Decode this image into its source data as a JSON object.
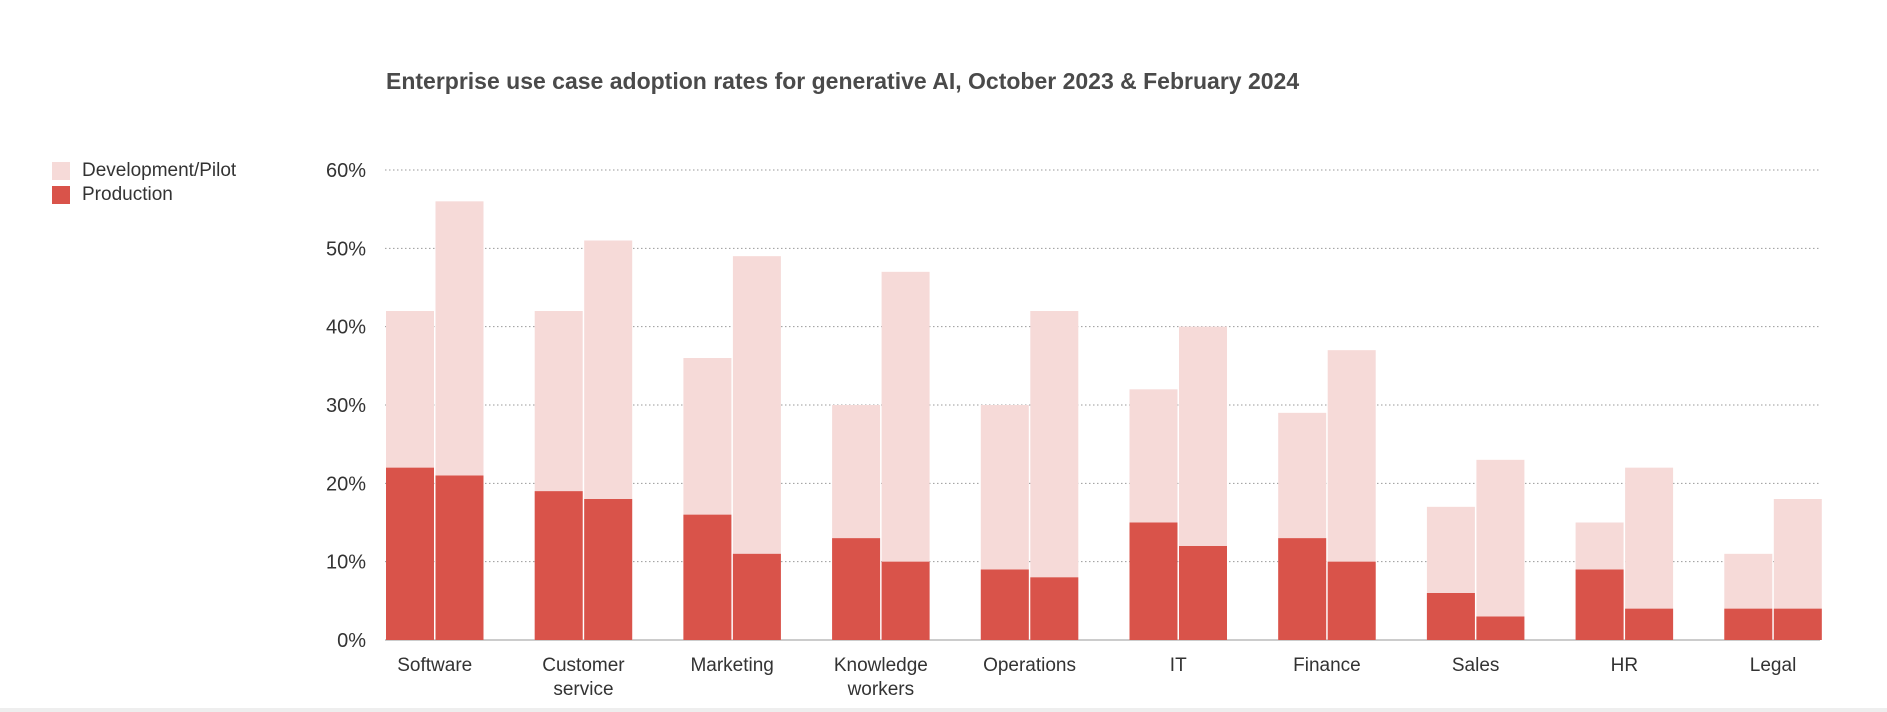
{
  "chart_data": {
    "type": "bar",
    "stacked": true,
    "grouped": true,
    "title": "Enterprise use case adoption rates for generative AI, October 2023 & February 2024",
    "xlabel": "",
    "ylabel": "",
    "ylim": [
      0,
      60
    ],
    "yticks": [
      "0%",
      "10%",
      "20%",
      "30%",
      "40%",
      "50%",
      "60%"
    ],
    "grid": "horizontal-dotted",
    "legend_position": "top-left",
    "categories": [
      [
        "Software"
      ],
      [
        "Customer",
        "service"
      ],
      [
        "Marketing"
      ],
      [
        "Knowledge",
        "workers"
      ],
      [
        "Operations"
      ],
      [
        "IT"
      ],
      [
        "Finance"
      ],
      [
        "Sales"
      ],
      [
        "HR"
      ],
      [
        "Legal"
      ]
    ],
    "periods": [
      "October 2023",
      "February 2024"
    ],
    "stack_series": [
      {
        "name": "Development/Pilot",
        "color": "#f6dad8"
      },
      {
        "name": "Production",
        "color": "#d9534a"
      }
    ],
    "totals": {
      "October 2023": [
        42,
        42,
        36,
        30,
        30,
        32,
        29,
        17,
        15,
        11
      ],
      "February 2024": [
        56,
        51,
        49,
        47,
        42,
        40,
        37,
        23,
        22,
        18
      ]
    },
    "production": {
      "October 2023": [
        22,
        19,
        16,
        13,
        9,
        15,
        13,
        6,
        9,
        4
      ],
      "February 2024": [
        21,
        18,
        11,
        10,
        8,
        12,
        10,
        3,
        4,
        4
      ]
    }
  }
}
